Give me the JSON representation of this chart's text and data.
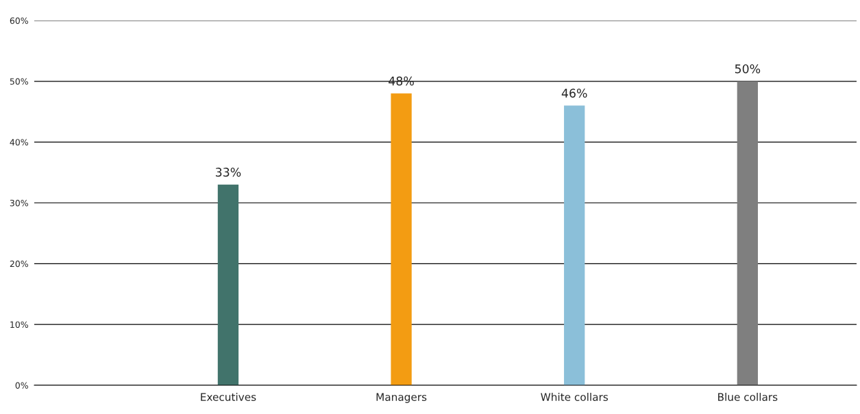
{
  "chart_data": {
    "type": "bar",
    "categories": [
      "Executives",
      "Managers",
      "White collars",
      "Blue collars"
    ],
    "values": [
      33,
      48,
      46,
      50
    ],
    "colors": [
      "#41736b",
      "#f39c12",
      "#8bbfd9",
      "#7f7f7f"
    ],
    "ylim": [
      0,
      60
    ],
    "yticks": [
      {
        "value": 0,
        "label": "0%"
      },
      {
        "value": 10,
        "label": "10%"
      },
      {
        "value": 20,
        "label": "20%"
      },
      {
        "value": 30,
        "label": "30%"
      },
      {
        "value": 40,
        "label": "40%"
      },
      {
        "value": 50,
        "label": "50%"
      },
      {
        "value": 60,
        "label": "60%"
      }
    ],
    "value_labels": [
      "33%",
      "48%",
      "46%",
      "50%"
    ],
    "grid": "y",
    "legend": false
  }
}
